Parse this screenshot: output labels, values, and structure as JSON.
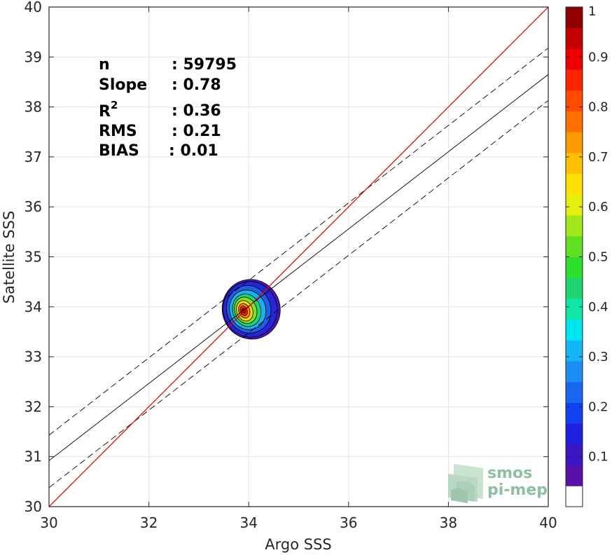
{
  "chart_data": {
    "type": "heatmap",
    "title": "",
    "xlabel": "Argo SSS",
    "ylabel": "Satellite SSS",
    "xlim": [
      30,
      40
    ],
    "ylim": [
      30,
      40
    ],
    "xticks": [
      "30",
      "32",
      "34",
      "36",
      "38",
      "40"
    ],
    "yticks": [
      "30",
      "31",
      "32",
      "33",
      "34",
      "35",
      "36",
      "37",
      "38",
      "39",
      "40"
    ],
    "grid": true,
    "stats": {
      "n_label": "n",
      "n_value": ": 59795",
      "slope_label": "Slope",
      "slope_value": ": 0.78",
      "r2_label": "R",
      "r2_sup": "2",
      "r2_value": ": 0.36",
      "rms_label": "RMS",
      "rms_value": ": 0.21",
      "bias_label": "BIAS",
      "bias_value": ": 0.01"
    },
    "identity_line": {
      "color": "#e8000b",
      "from": [
        30,
        30
      ],
      "to": [
        40,
        40
      ]
    },
    "fit_line": {
      "color": "#000000",
      "from": [
        30,
        30.92
      ],
      "to": [
        40,
        38.65
      ]
    },
    "fit_bands": {
      "color": "#000000",
      "style": "dashed",
      "upper": {
        "from": [
          30,
          31.43
        ],
        "to": [
          40,
          39.18
        ]
      },
      "lower": {
        "from": [
          30,
          30.38
        ],
        "to": [
          40,
          38.13
        ]
      }
    },
    "density_peak": {
      "x": 33.9,
      "y": 33.92
    },
    "contours": [
      {
        "level": 0.05,
        "color": "#4a14b8",
        "cx": 34.05,
        "cy": 33.95,
        "rx": 0.58,
        "ry": 0.6,
        "rot": -20
      },
      {
        "level": 0.15,
        "color": "#2626d6",
        "cx": 34.03,
        "cy": 33.95,
        "rx": 0.54,
        "ry": 0.56,
        "rot": -20
      },
      {
        "level": 0.25,
        "color": "#1e5fe6",
        "cx": 34.0,
        "cy": 33.95,
        "rx": 0.44,
        "ry": 0.48,
        "rot": -20
      },
      {
        "level": 0.35,
        "color": "#1ab0f0",
        "cx": 33.98,
        "cy": 33.94,
        "rx": 0.36,
        "ry": 0.4,
        "rot": -20
      },
      {
        "level": 0.45,
        "color": "#1ed67a",
        "cx": 33.96,
        "cy": 33.93,
        "rx": 0.28,
        "ry": 0.33,
        "rot": -20
      },
      {
        "level": 0.55,
        "color": "#7fe01e",
        "cx": 33.94,
        "cy": 33.93,
        "rx": 0.22,
        "ry": 0.27,
        "rot": -20
      },
      {
        "level": 0.65,
        "color": "#ffd200",
        "cx": 33.92,
        "cy": 33.92,
        "rx": 0.16,
        "ry": 0.21,
        "rot": -20
      },
      {
        "level": 0.75,
        "color": "#ff8a00",
        "cx": 33.91,
        "cy": 33.92,
        "rx": 0.11,
        "ry": 0.15,
        "rot": -20
      },
      {
        "level": 0.85,
        "color": "#ff2200",
        "cx": 33.9,
        "cy": 33.92,
        "rx": 0.07,
        "ry": 0.1,
        "rot": -20
      },
      {
        "level": 0.95,
        "color": "#aa0000",
        "cx": 33.9,
        "cy": 33.92,
        "rx": 0.035,
        "ry": 0.05,
        "rot": -20
      }
    ],
    "colorbar": {
      "ticks": [
        "0.1",
        "0.2",
        "0.3",
        "0.4",
        "0.5",
        "0.6",
        "0.7",
        "0.8",
        "0.9",
        "1"
      ],
      "range": [
        0,
        1
      ],
      "bins": [
        "#ffffff",
        "#5a0fa8",
        "#3a16c4",
        "#2020e0",
        "#1040f0",
        "#1a66f0",
        "#1a8ef2",
        "#15b6f5",
        "#00e6f0",
        "#10e6a8",
        "#1ed670",
        "#2ee02e",
        "#60e020",
        "#a0e81a",
        "#e6f010",
        "#ffe000",
        "#ffc000",
        "#ff9a00",
        "#ff7000",
        "#ff4a00",
        "#ff2400",
        "#ee0000",
        "#c40000",
        "#900000"
      ]
    },
    "watermark": {
      "line1": "smos",
      "line2": "pi-mep",
      "color": "#8fbf9f"
    }
  }
}
